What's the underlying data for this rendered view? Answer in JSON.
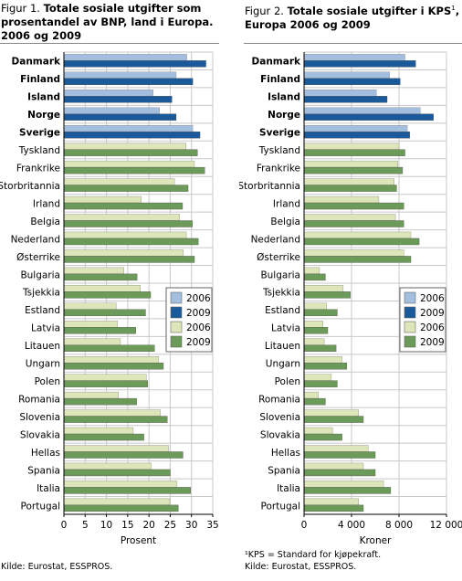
{
  "figures": [
    {
      "title_prefix": "Figur 1. ",
      "title_line1": "Totale sosiale utgifter som",
      "title_line2": "prosentandel av BNP, land i Europa.",
      "title_line3": "2006 og 2009",
      "source": "Kilde: Eurostat, ESSPROS."
    },
    {
      "title_prefix": "Figur 2. ",
      "title_line1": "Totale sosiale utgifter i KPS",
      "title_sup": "1",
      "title_line1_end": ",",
      "title_line2": "Europa 2006 og 2009",
      "footnote": "¹KPS = Standard for kjøpekraft.",
      "source": "Kilde: Eurostat, ESSPROS."
    }
  ],
  "colors": {
    "nordic_2006": "#a4bedf",
    "nordic_2009": "#1a5a9a",
    "other_2006": "#dce6b8",
    "other_2009": "#6c9a58",
    "grid": "#c8c8c8"
  },
  "chart_data": [
    {
      "type": "bar",
      "orientation": "horizontal",
      "categories": [
        "Danmark",
        "Finland",
        "Island",
        "Norge",
        "Sverige",
        "Tyskland",
        "Frankrike",
        "Storbritannia",
        "Irland",
        "Belgia",
        "Nederland",
        "Østerrike",
        "Bulgaria",
        "Tsjekkia",
        "Estland",
        "Latvia",
        "Litauen",
        "Ungarn",
        "Polen",
        "Romania",
        "Slovenia",
        "Slovakia",
        "Hellas",
        "Spania",
        "Italia",
        "Portugal"
      ],
      "bold_categories": [
        "Danmark",
        "Finland",
        "Island",
        "Norge",
        "Sverige"
      ],
      "series": [
        {
          "name": "2006",
          "values": [
            28.9,
            26.4,
            21.0,
            22.5,
            30.3,
            28.7,
            30.7,
            26.0,
            18.2,
            27.2,
            28.8,
            28.1,
            14.1,
            18.0,
            12.3,
            12.6,
            13.3,
            22.3,
            19.4,
            12.8,
            22.7,
            16.3,
            24.6,
            20.5,
            26.6,
            24.9
          ]
        },
        {
          "name": "2009",
          "values": [
            33.4,
            30.3,
            25.4,
            26.4,
            32.0,
            31.4,
            33.1,
            29.2,
            27.9,
            30.2,
            31.6,
            30.7,
            17.2,
            20.4,
            19.2,
            16.9,
            21.3,
            23.4,
            19.7,
            17.1,
            24.3,
            18.8,
            28.0,
            25.0,
            29.8,
            26.9
          ]
        }
      ],
      "legend": [
        "2006",
        "2009",
        "2006",
        "2009"
      ],
      "xlabel": "Prosent",
      "xlim": [
        0,
        35
      ],
      "xticks": [
        0,
        5,
        10,
        15,
        20,
        25,
        30,
        35
      ],
      "xtick_labels": [
        "0",
        "5",
        "10",
        "15",
        "20",
        "25",
        "30",
        "35"
      ],
      "grid": true,
      "legend_position": "right"
    },
    {
      "type": "bar",
      "orientation": "horizontal",
      "categories": [
        "Danmark",
        "Finland",
        "Island",
        "Norge",
        "Sverige",
        "Tyskland",
        "Frankrike",
        "Storbritannia",
        "Irland",
        "Belgia",
        "Nederland",
        "Østerrike",
        "Bulgaria",
        "Tsjekkia",
        "Estland",
        "Latvia",
        "Litauen",
        "Ungarn",
        "Polen",
        "Romania",
        "Slovenia",
        "Slovakia",
        "Hellas",
        "Spania",
        "Italia",
        "Portugal"
      ],
      "bold_categories": [
        "Danmark",
        "Finland",
        "Island",
        "Norge",
        "Sverige"
      ],
      "series": [
        {
          "name": "2006",
          "values": [
            8500,
            7200,
            6100,
            9800,
            8700,
            8000,
            7900,
            7600,
            6300,
            7700,
            9000,
            8400,
            1300,
            3300,
            1900,
            1600,
            1700,
            3200,
            2300,
            1200,
            4600,
            2400,
            5400,
            5000,
            6700,
            4600
          ]
        },
        {
          "name": "2009",
          "values": [
            9400,
            8100,
            7000,
            10900,
            8900,
            8500,
            8300,
            7800,
            8400,
            8400,
            9700,
            9000,
            1800,
            3900,
            2800,
            2000,
            2700,
            3600,
            2800,
            1800,
            5000,
            3200,
            6000,
            6000,
            7300,
            5000
          ]
        }
      ],
      "legend": [
        "2006",
        "2009",
        "2006",
        "2009"
      ],
      "xlabel": "Kroner",
      "xlim": [
        0,
        12000
      ],
      "xticks": [
        0,
        4000,
        8000,
        12000
      ],
      "xtick_labels": [
        "0",
        "4 000",
        "8 000",
        "12 000"
      ],
      "grid": true,
      "legend_position": "right"
    }
  ]
}
